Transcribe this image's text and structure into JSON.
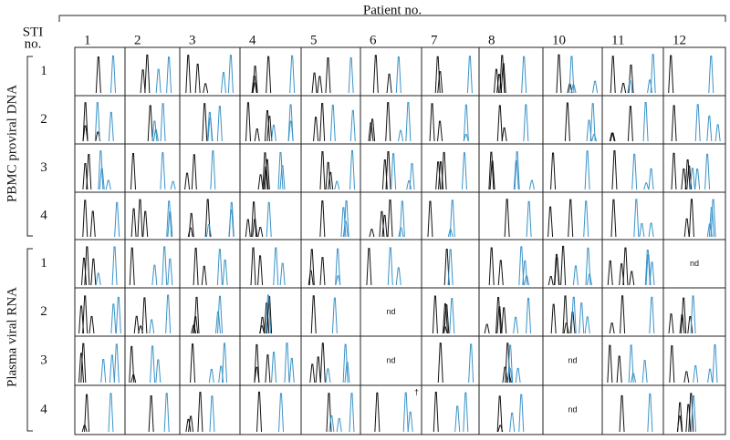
{
  "header": {
    "title": "Patient no.",
    "sti_label": [
      "STI",
      "no."
    ]
  },
  "patients": [
    "1",
    "2",
    "3",
    "4",
    "5",
    "6",
    "7",
    "8",
    "10",
    "11",
    "12"
  ],
  "groups": [
    {
      "label": "PBMC proviral DNA",
      "rows": [
        "1",
        "2",
        "3",
        "4"
      ],
      "cells": [
        [
          null,
          null,
          null,
          null,
          null,
          null,
          null,
          null,
          null,
          null,
          null
        ],
        [
          null,
          null,
          null,
          null,
          null,
          null,
          null,
          null,
          null,
          null,
          null
        ],
        [
          null,
          null,
          null,
          null,
          null,
          null,
          null,
          null,
          null,
          null,
          null
        ],
        [
          null,
          null,
          null,
          null,
          null,
          null,
          null,
          null,
          null,
          null,
          null
        ]
      ]
    },
    {
      "label": "Plasma viral RNA",
      "rows": [
        "1",
        "2",
        "3",
        "4"
      ],
      "cells": [
        [
          null,
          null,
          null,
          null,
          null,
          null,
          null,
          null,
          null,
          null,
          "nd"
        ],
        [
          null,
          null,
          null,
          null,
          null,
          "nd",
          null,
          null,
          null,
          null,
          null
        ],
        [
          null,
          null,
          null,
          null,
          null,
          "nd",
          null,
          null,
          "nd",
          null,
          null
        ],
        [
          null,
          null,
          null,
          null,
          null,
          "†",
          null,
          null,
          "nd",
          null,
          null
        ]
      ]
    }
  ]
}
